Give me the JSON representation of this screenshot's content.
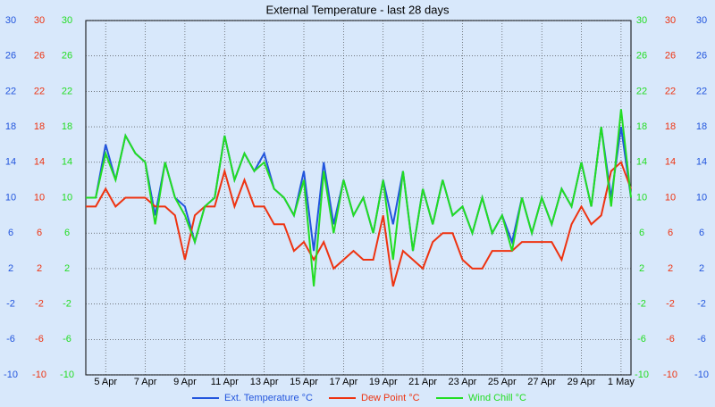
{
  "chart_data": {
    "type": "line",
    "title": "External Temperature - last 28 days",
    "categories": [
      null,
      null,
      "5 Apr",
      null,
      null,
      null,
      "7 Apr",
      null,
      null,
      null,
      "9 Apr",
      null,
      null,
      null,
      "11 Apr",
      null,
      null,
      null,
      "13 Apr",
      null,
      null,
      null,
      "15 Apr",
      null,
      null,
      null,
      "17 Apr",
      null,
      null,
      null,
      "19 Apr",
      null,
      null,
      null,
      "21 Apr",
      null,
      null,
      null,
      "23 Apr",
      null,
      null,
      null,
      "25 Apr",
      null,
      null,
      null,
      "27 Apr",
      null,
      null,
      null,
      "29 Apr",
      null,
      null,
      null,
      "1 May",
      null
    ],
    "series": [
      {
        "name": "Ext. Temperature °C",
        "color": "#2255dd",
        "values": [
          10,
          10,
          16,
          12,
          17,
          15,
          14,
          8,
          14,
          10,
          9,
          5,
          9,
          10,
          17,
          12,
          15,
          13,
          15,
          11,
          10,
          8,
          13,
          4,
          14,
          7,
          12,
          8,
          10,
          6,
          12,
          7,
          13,
          4,
          11,
          7,
          12,
          8,
          9,
          6,
          10,
          6,
          8,
          5,
          10,
          6,
          10,
          7,
          11,
          9,
          14,
          9,
          18,
          10,
          18,
          10
        ]
      },
      {
        "name": "Dew Point °C",
        "color": "#ee3311",
        "values": [
          9,
          9,
          11,
          9,
          10,
          10,
          10,
          9,
          9,
          8,
          3,
          8,
          9,
          9,
          13,
          9,
          12,
          9,
          9,
          7,
          7,
          4,
          5,
          3,
          5,
          2,
          3,
          4,
          3,
          3,
          8,
          0,
          4,
          3,
          2,
          5,
          6,
          6,
          3,
          2,
          2,
          4,
          4,
          4,
          5,
          5,
          5,
          5,
          3,
          7,
          9,
          7,
          8,
          13,
          14,
          11
        ]
      },
      {
        "name": "Wind Chill °C",
        "color": "#22dd22",
        "values": [
          10,
          10,
          15,
          12,
          17,
          15,
          14,
          7,
          14,
          10,
          8,
          5,
          9,
          10,
          17,
          12,
          15,
          13,
          14,
          11,
          10,
          8,
          12,
          0,
          13,
          6,
          12,
          8,
          10,
          6,
          12,
          3,
          13,
          4,
          11,
          7,
          12,
          8,
          9,
          6,
          10,
          6,
          8,
          4,
          10,
          6,
          10,
          7,
          11,
          9,
          14,
          9,
          18,
          9,
          20,
          10
        ]
      }
    ],
    "ylim": [
      -10,
      30
    ],
    "yticks": [
      -10,
      -6,
      -2,
      2,
      6,
      10,
      14,
      18,
      22,
      26,
      30
    ],
    "grid": true
  }
}
